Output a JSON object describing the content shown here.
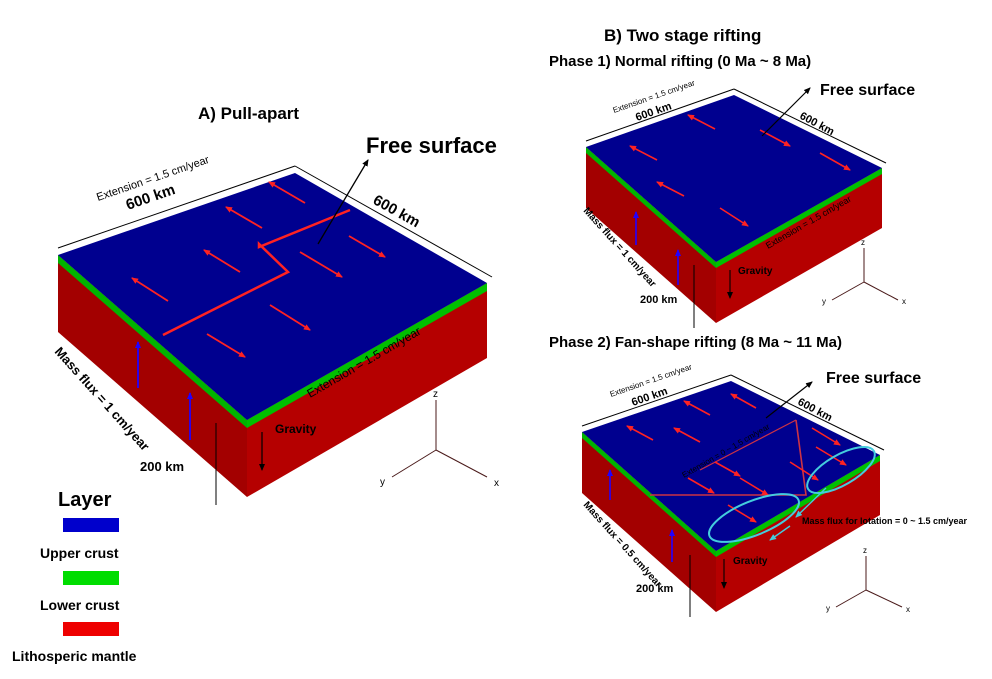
{
  "panel_a": {
    "title": "A) Pull-apart",
    "free_surface": "Free surface",
    "extension_top": "Extension = 1.5 cm/year",
    "width_label": "600 km",
    "depth_label": "600 km",
    "extension_side": "Extension = 1.5 cm/year",
    "mass_flux": "Mass flux = 1 cm/year",
    "gravity": "Gravity",
    "thickness": "200 km",
    "axis_z": "z",
    "axis_y": "y",
    "axis_x": "x"
  },
  "panel_b": {
    "title": "B) Two  stage rifting",
    "phase1": {
      "title": "Phase 1) Normal rifting (0 Ma ~ 8 Ma)",
      "free_surface": "Free surface",
      "extension_top": "Extension = 1.5 cm/year",
      "width_label": "600 km",
      "depth_label": "600 km",
      "extension_side": "Extension = 1.5 cm/year",
      "mass_flux": "Mass flux = 1 cm/year",
      "gravity": "Gravity",
      "thickness": "200 km",
      "axis_z": "z",
      "axis_y": "y",
      "axis_x": "x"
    },
    "phase2": {
      "title": "Phase 2) Fan-shape rifting (8 Ma ~ 11 Ma)",
      "free_surface": "Free surface",
      "extension_top": "Extension = 1.5 cm/year",
      "width_label": "600 km",
      "depth_label": "600 km",
      "extension_inner": "Extension = 0 ~ 1.5 cm/year",
      "mass_flux": "Mass flux = 0.5 cm/year",
      "mass_flux_rotation": "Mass flux for lotation = 0 ~ 1.5 cm/year",
      "gravity": "Gravity",
      "thickness": "200 km",
      "axis_z": "z",
      "axis_y": "y",
      "axis_x": "x"
    }
  },
  "legend": {
    "title": "Layer",
    "items": [
      {
        "label": "Upper crust",
        "color": "#0000cc"
      },
      {
        "label": "Lower crust",
        "color": "#00dd00"
      },
      {
        "label": "Lithosperic mantle",
        "color": "#ee0000"
      }
    ]
  },
  "colors": {
    "upper_crust_top": "#000099",
    "lower_crust": "#00b400",
    "mantle_front": "#a00000",
    "mantle_side": "#b00000",
    "arrow": "#ff2222",
    "flux_arrow": "#2200ff",
    "ellipse": "#44ccdd"
  }
}
